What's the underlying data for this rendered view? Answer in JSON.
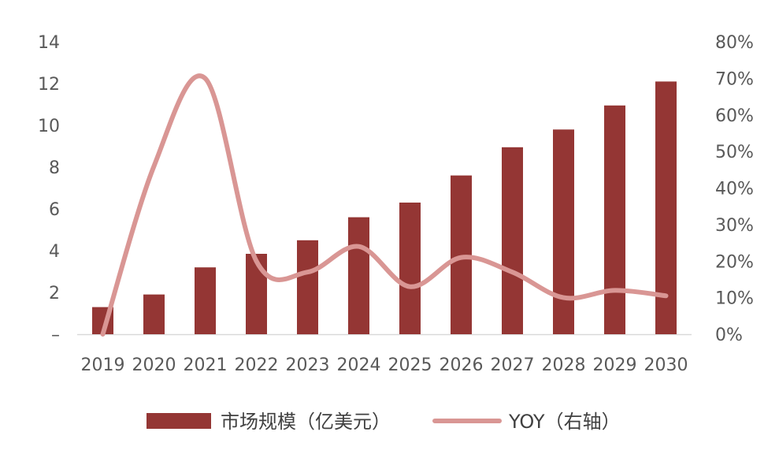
{
  "chart_data": {
    "type": "bar",
    "categories": [
      "2019",
      "2020",
      "2021",
      "2022",
      "2023",
      "2024",
      "2025",
      "2026",
      "2027",
      "2028",
      "2029",
      "2030"
    ],
    "series": [
      {
        "name": "市场规模（亿美元）",
        "type": "bar",
        "axis": "left",
        "color": "#943634",
        "values": [
          1.3,
          1.9,
          3.2,
          3.85,
          4.5,
          5.6,
          6.3,
          7.6,
          8.95,
          9.8,
          10.95,
          12.1
        ]
      },
      {
        "name": "YOY（右轴）",
        "type": "line",
        "smooth": true,
        "axis": "right",
        "color": "#D99694",
        "values": [
          0.0,
          0.46,
          0.7,
          0.2,
          0.17,
          0.24,
          0.13,
          0.21,
          0.17,
          0.1,
          0.12,
          0.105
        ]
      }
    ],
    "y_left": {
      "ylim": [
        0,
        14
      ],
      "tick_values": [
        0,
        2,
        4,
        6,
        8,
        10,
        12,
        14
      ],
      "tick_labels": [
        "–",
        "2",
        "4",
        "6",
        "8",
        "10",
        "12",
        "14"
      ]
    },
    "y_right": {
      "ylim": [
        0,
        0.8
      ],
      "tick_values": [
        0,
        0.1,
        0.2,
        0.3,
        0.4,
        0.5,
        0.6,
        0.7,
        0.8
      ],
      "tick_labels": [
        "0%",
        "10%",
        "20%",
        "30%",
        "40%",
        "50%",
        "60%",
        "70%",
        "80%"
      ]
    },
    "grid": false,
    "legend_position": "bottom",
    "legend": [
      {
        "label": "市场规模（亿美元）",
        "marker": "bar",
        "color": "#943634"
      },
      {
        "label": "YOY（右轴）",
        "marker": "line",
        "color": "#D99694"
      }
    ]
  }
}
